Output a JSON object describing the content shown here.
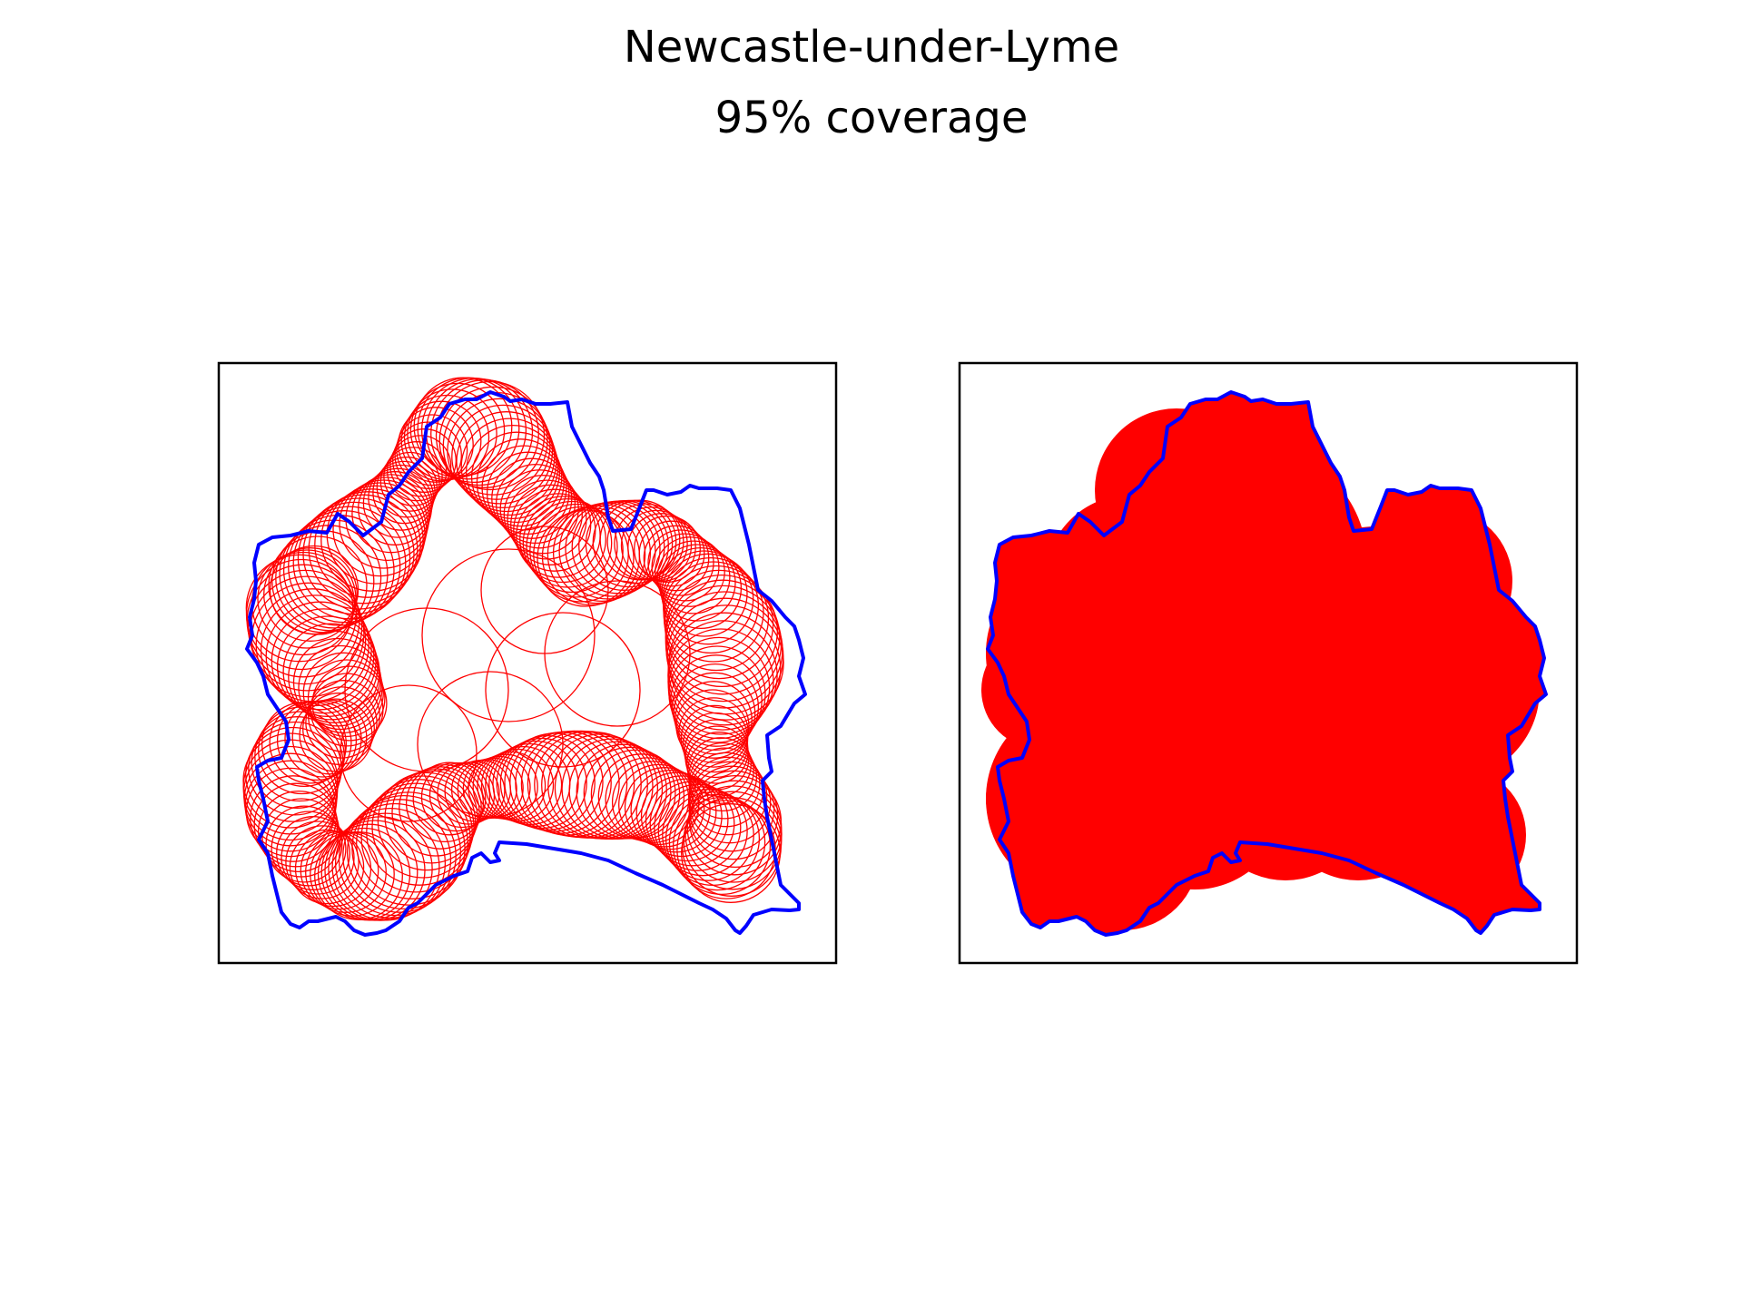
{
  "title": "Newcastle-under-Lyme",
  "subtitle": "95% coverage",
  "colors": {
    "boundary": "#0000ff",
    "coverage": "#ff0000",
    "frame": "#000000",
    "background": "#ffffff"
  },
  "panels": [
    {
      "name": "circles-outline-panel",
      "style": "outline"
    },
    {
      "name": "circles-filled-panel",
      "style": "filled"
    }
  ]
}
